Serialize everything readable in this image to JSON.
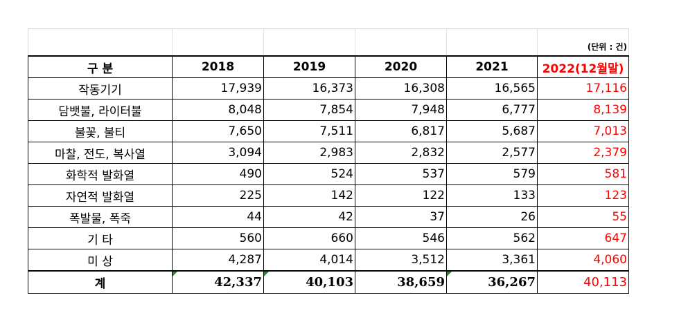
{
  "unit_note": "(단위 : 건)",
  "header": [
    "구  분",
    "2018",
    "2019",
    "2020",
    "2021",
    "2022(12월말)"
  ],
  "rows": [
    {
      "label": "작동기기",
      "values": [
        "17,939",
        "16,373",
        "16,308",
        "16,565",
        "17,116"
      ]
    },
    {
      "label": "담뱃불, 라이터불",
      "values": [
        "8,048",
        "7,854",
        "7,948",
        "6,777",
        "8,139"
      ]
    },
    {
      "label": "불꽃, 불티",
      "values": [
        "7,650",
        "7,511",
        "6,817",
        "5,687",
        "7,013"
      ]
    },
    {
      "label": "마찰, 전도, 복사열",
      "values": [
        "3,094",
        "2,983",
        "2,832",
        "2,577",
        "2,379"
      ]
    },
    {
      "label": "화학적 발화열",
      "values": [
        "490",
        "524",
        "537",
        "579",
        "581"
      ]
    },
    {
      "label": "자연적 발화열",
      "values": [
        "225",
        "142",
        "122",
        "133",
        "123"
      ]
    },
    {
      "label": "폭발물, 폭죽",
      "values": [
        "44",
        "42",
        "37",
        "26",
        "55"
      ]
    },
    {
      "label": "기   타",
      "values": [
        "560",
        "660",
        "546",
        "562",
        "647"
      ]
    },
    {
      "label": "미   상",
      "values": [
        "4,287",
        "4,014",
        "3,512",
        "3,361",
        "4,060"
      ]
    }
  ],
  "total": {
    "label": "계",
    "values": [
      "42,337",
      "40,103",
      "38,659",
      "36,267",
      "40,113"
    ]
  },
  "colors": {
    "highlight": "#ff0000",
    "error_marker": "#1e8a2e"
  }
}
